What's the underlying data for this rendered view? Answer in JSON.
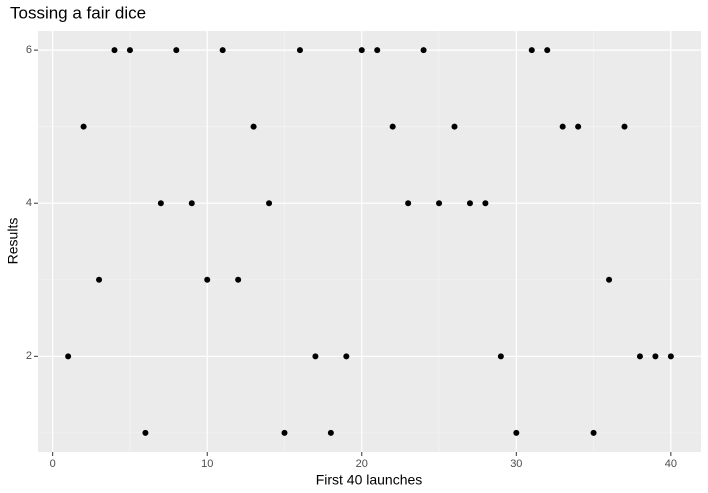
{
  "chart_data": {
    "type": "scatter",
    "title": "Tossing a fair dice",
    "x_label": "First 40 launches",
    "y_label": "Results",
    "x": [
      1,
      2,
      3,
      4,
      5,
      6,
      7,
      8,
      9,
      10,
      11,
      12,
      13,
      14,
      15,
      16,
      17,
      18,
      19,
      20,
      21,
      22,
      23,
      24,
      25,
      26,
      27,
      28,
      29,
      30,
      31,
      32,
      33,
      34,
      35,
      36,
      37,
      38,
      39,
      40
    ],
    "values": [
      2,
      5,
      3,
      6,
      6,
      1,
      4,
      6,
      4,
      3,
      6,
      3,
      5,
      4,
      1,
      6,
      2,
      1,
      2,
      6,
      6,
      5,
      4,
      6,
      4,
      5,
      4,
      4,
      2,
      1,
      6,
      6,
      5,
      5,
      1,
      3,
      5,
      2,
      2,
      2
    ],
    "color": "#000000",
    "xlim": [
      -0.95,
      41.95
    ],
    "xticks": [
      0,
      10,
      20,
      30,
      40
    ],
    "ylim": [
      0.75,
      6.25
    ],
    "yticks": [
      2,
      4,
      6
    ],
    "grid": true
  }
}
